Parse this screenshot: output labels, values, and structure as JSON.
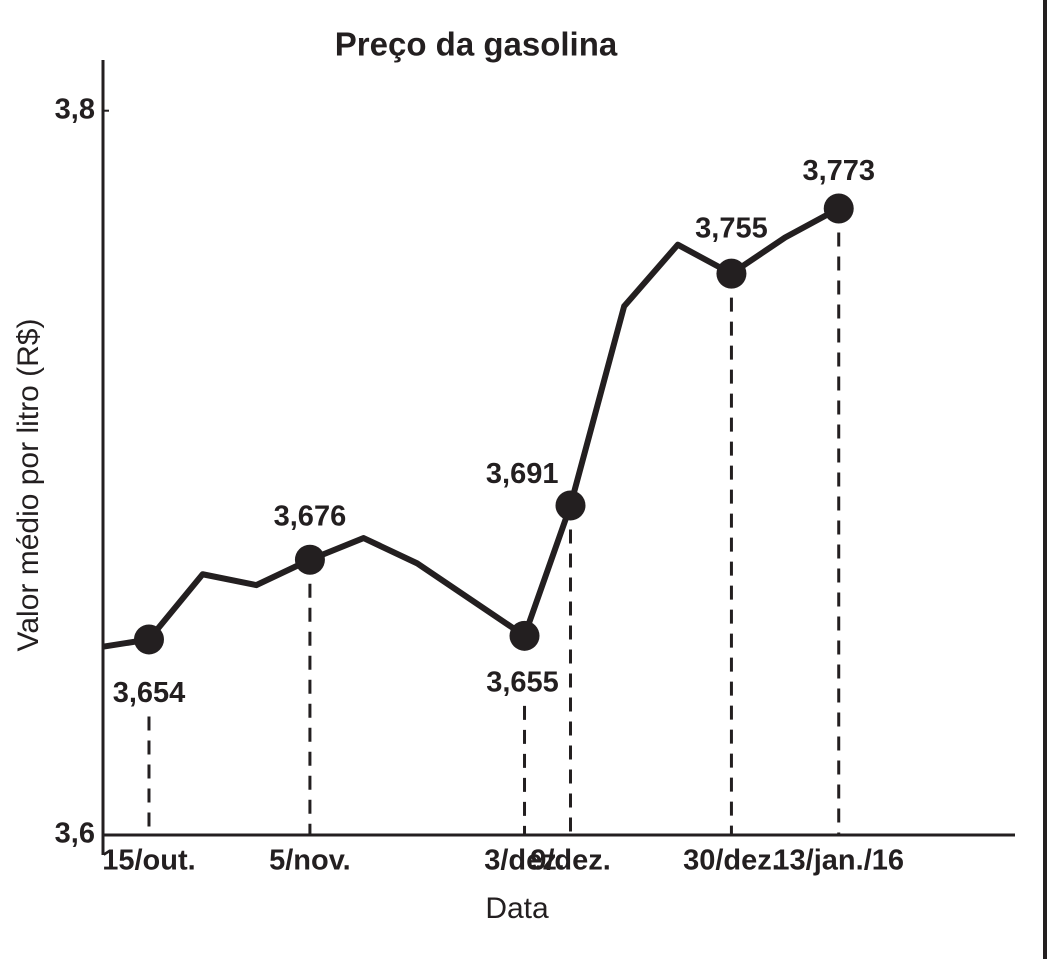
{
  "chart_data": {
    "type": "line",
    "title": "Preço da gasolina",
    "x_label": "Data",
    "y_label": "Valor médio por litro (R$)",
    "x": [
      -6,
      0,
      7,
      14,
      21,
      28,
      35,
      49,
      55,
      62,
      69,
      76,
      83,
      90
    ],
    "values": [
      3.652,
      3.654,
      3.672,
      3.669,
      3.676,
      3.682,
      3.675,
      3.655,
      3.691,
      3.746,
      3.763,
      3.755,
      3.765,
      3.773
    ],
    "value_labels": [
      null,
      "3,654",
      null,
      null,
      "3,676",
      null,
      null,
      "3,655",
      "3,691",
      null,
      null,
      "3,755",
      null,
      "3,773"
    ],
    "color": "#231f20",
    "xlim": [
      -6,
      113
    ],
    "xticks": [
      {
        "value": 0,
        "label": "15/out."
      },
      {
        "value": 21,
        "label": "5/nov."
      },
      {
        "value": 49,
        "label": "3/dez."
      },
      {
        "value": 55,
        "label": "9/dez."
      },
      {
        "value": 76,
        "label": "30/dez."
      },
      {
        "value": 90,
        "label": "13/jan./16"
      }
    ],
    "ylim": [
      3.6,
      3.814
    ],
    "yticks": [
      {
        "value": 3.6,
        "label": "3,6"
      },
      {
        "value": 3.8,
        "label": "3,8"
      }
    ]
  }
}
